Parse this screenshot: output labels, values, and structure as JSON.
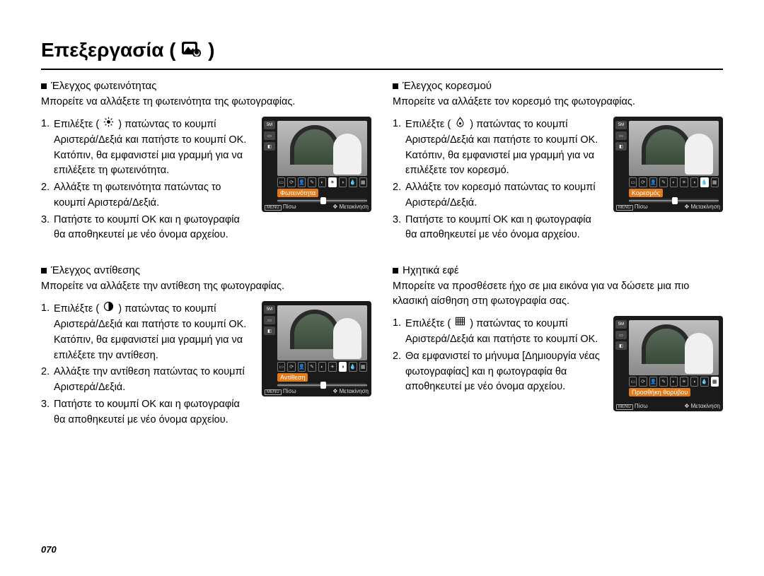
{
  "page": {
    "title": "Επεξεργασία (",
    "title_close": ")",
    "page_number": "070"
  },
  "colors": {
    "text": "#000000",
    "bg": "#ffffff",
    "cam_bg": "#1a1a1a",
    "cam_label_bg": "#e07a1a"
  },
  "cam_ui": {
    "size_badge": "5M",
    "back": "Πίσω",
    "move": "Μετακίνηση",
    "menu": "MENU"
  },
  "sections": [
    {
      "id": "brightness",
      "heading": "Έλεγχος φωτεινότητας",
      "sub": "Μπορείτε να αλλάξετε τη φωτεινότητα της φωτογραφίας.",
      "cam_label": "Φωτεινότητα",
      "iconbar_selected": 5,
      "steps": [
        {
          "pre": "Επιλέξτε (",
          "icon": "sun",
          "post": ") πατώντας το κουμπί Αριστερά/Δεξιά και πατήστε το κουμπί ΟΚ. Κατόπιν, θα εμφανιστεί μια γραμμή για να επιλέξετε τη φωτεινότητα."
        },
        {
          "pre": "Αλλάξτε τη φωτεινότητα πατώντας το κουμπί Αριστερά/Δεξιά.",
          "icon": null,
          "post": ""
        },
        {
          "pre": "Πατήστε το κουμπί ΟΚ και η φωτογραφία θα αποθηκευτεί με νέο όνομα αρχείου.",
          "icon": null,
          "post": ""
        }
      ]
    },
    {
      "id": "contrast",
      "heading": "Έλεγχος αντίθεσης",
      "sub": "Μπορείτε να αλλάξετε την αντίθεση της φωτογραφίας.",
      "cam_label": "Αντίθεση",
      "iconbar_selected": 6,
      "steps": [
        {
          "pre": "Επιλέξτε (",
          "icon": "contrast",
          "post": ") πατώντας το κουμπί Αριστερά/Δεξιά και πατήστε το κουμπί ΟΚ. Κατόπιν, θα εμφανιστεί μια γραμμή για να επιλέξετε την αντίθεση."
        },
        {
          "pre": "Αλλάξτε την αντίθεση πατώντας το κουμπί Αριστερά/Δεξιά.",
          "icon": null,
          "post": ""
        },
        {
          "pre": "Πατήστε το κουμπί ΟΚ και η φωτογραφία θα αποθηκευτεί με νέο όνομα αρχείου.",
          "icon": null,
          "post": ""
        }
      ]
    },
    {
      "id": "saturation",
      "heading": "Έλεγχος κορεσμού",
      "sub": "Μπορείτε να αλλάξετε τον κορεσμό της φωτογραφίας.",
      "cam_label": "Κορεσμός",
      "iconbar_selected": 7,
      "steps": [
        {
          "pre": "Επιλέξτε (",
          "icon": "saturation",
          "post": ") πατώντας το κουμπί Αριστερά/Δεξιά και πατήστε το κουμπί ΟΚ. Κατόπιν, θα εμφανιστεί μια γραμμή για να επιλέξετε τον κορεσμό."
        },
        {
          "pre": "Αλλάξτε τον κορεσμό πατώντας το κουμπί Αριστερά/Δεξιά.",
          "icon": null,
          "post": ""
        },
        {
          "pre": "Πατήστε το κουμπί ΟΚ και η φωτογραφία θα αποθηκευτεί με νέο όνομα αρχείου.",
          "icon": null,
          "post": ""
        }
      ]
    },
    {
      "id": "noise",
      "heading": "Ηχητικά εφέ",
      "sub": "Μπορείτε να προσθέσετε ήχο σε μια εικόνα για να δώσετε μια πιο κλασική αίσθηση στη φωτογραφία σας.",
      "cam_label": "Προσθήκη θορύβου",
      "iconbar_selected": 8,
      "no_slider": true,
      "steps": [
        {
          "pre": "Επιλέξτε (",
          "icon": "noise",
          "post": ") πατώντας το κουμπί Αριστερά/Δεξιά και πατήστε το κουμπί ΟΚ."
        },
        {
          "pre": "Θα εμφανιστεί το μήνυμα [Δημιουργία νέας φωτογραφίας] και η φωτογραφία θα αποθηκευτεί με νέο όνομα αρχείου.",
          "icon": null,
          "post": ""
        }
      ]
    }
  ]
}
